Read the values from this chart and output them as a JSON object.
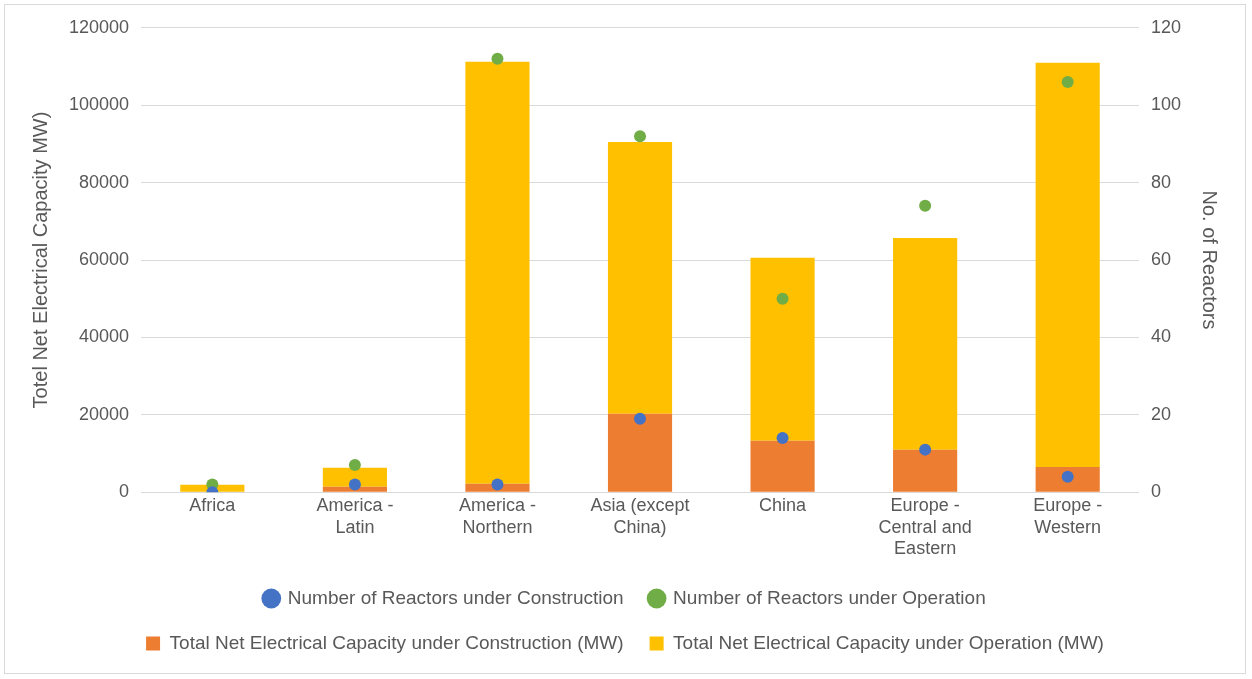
{
  "chart_data": {
    "type": "bar",
    "stacked": true,
    "categories": [
      "Africa",
      "America - Latin",
      "America - Northern",
      "Asia (except China)",
      "China",
      "Europe - Central and Eastern",
      "Europe - Western"
    ],
    "ylabel": "Totel Net Electrical Capacity MW)",
    "y2label": "No. of Reactors",
    "ylim": [
      0,
      120000
    ],
    "yticks": [
      0,
      20000,
      40000,
      60000,
      80000,
      100000,
      120000
    ],
    "y2lim": [
      0,
      120
    ],
    "y2ticks": [
      0,
      20,
      40,
      60,
      80,
      100,
      120
    ],
    "grid": "y",
    "legend": "bottom",
    "marker": "circle",
    "series": [
      {
        "name": "Total Net Electrical Capacity under Construction (MW)",
        "color": "#ed7d31",
        "values": [
          0,
          1400,
          2200,
          20300,
          13300,
          11000,
          6500
        ]
      },
      {
        "name": "Total Net Electrical Capacity under Operation (MW)",
        "color": "#ffc000",
        "values": [
          1900,
          4900,
          109000,
          70200,
          47300,
          54700,
          104500
        ]
      },
      {
        "name": "Number of Reactors under Construction",
        "type": "scatter",
        "axis": "y2",
        "color": "#4472c4",
        "values": [
          0,
          2,
          2,
          19,
          14,
          11,
          4
        ]
      },
      {
        "name": "Number of Reactors under Operation",
        "type": "scatter",
        "axis": "y2",
        "color": "#70ad47",
        "values": [
          2,
          7,
          112,
          92,
          50,
          74,
          106
        ]
      }
    ]
  }
}
